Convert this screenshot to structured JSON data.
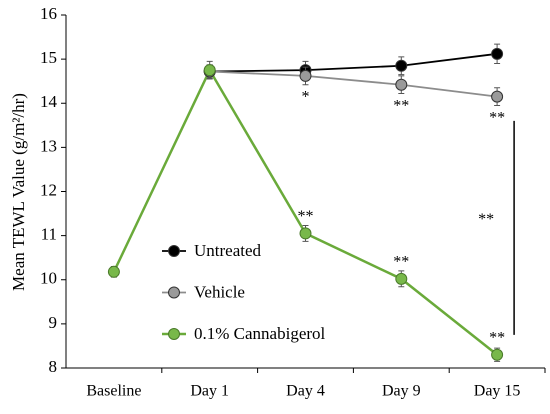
{
  "chart_data": {
    "type": "line",
    "ylabel": "Mean TEWL Value (g/m²/hr)",
    "categories": [
      "Baseline",
      "Day 1",
      "Day 4",
      "Day 9",
      "Day 15"
    ],
    "ylim": [
      8,
      16
    ],
    "yticks": [
      8,
      9,
      10,
      11,
      12,
      13,
      14,
      15,
      16
    ],
    "series": [
      {
        "name": "Untreated",
        "color": "#000000",
        "line_color": "#000000",
        "values": [
          null,
          14.72,
          14.75,
          14.85,
          15.12
        ],
        "errors": [
          null,
          0.15,
          0.2,
          0.2,
          0.22
        ]
      },
      {
        "name": "Vehicle",
        "color": "#9a9a9a",
        "line_color": "#8c8c8c",
        "values": [
          null,
          14.72,
          14.62,
          14.42,
          14.15
        ],
        "errors": [
          null,
          0.15,
          0.2,
          0.2,
          0.2
        ]
      },
      {
        "name": "0.1% Cannabigerol",
        "color": "#78b84a",
        "line_color": "#6aaa3a",
        "values": [
          10.18,
          14.75,
          11.05,
          10.02,
          8.3
        ],
        "errors": [
          0.12,
          0.2,
          0.18,
          0.18,
          0.15
        ]
      }
    ],
    "annotations": [
      {
        "text": "*",
        "series": 1,
        "index": 2
      },
      {
        "text": "**",
        "series": 1,
        "index": 3
      },
      {
        "text": "**",
        "series": 1,
        "index": 4
      },
      {
        "text": "**",
        "series": 2,
        "index": 2
      },
      {
        "text": "**",
        "series": 2,
        "index": 3
      },
      {
        "text": "**",
        "series": 2,
        "index": 4
      },
      {
        "text": "**"
      }
    ]
  }
}
